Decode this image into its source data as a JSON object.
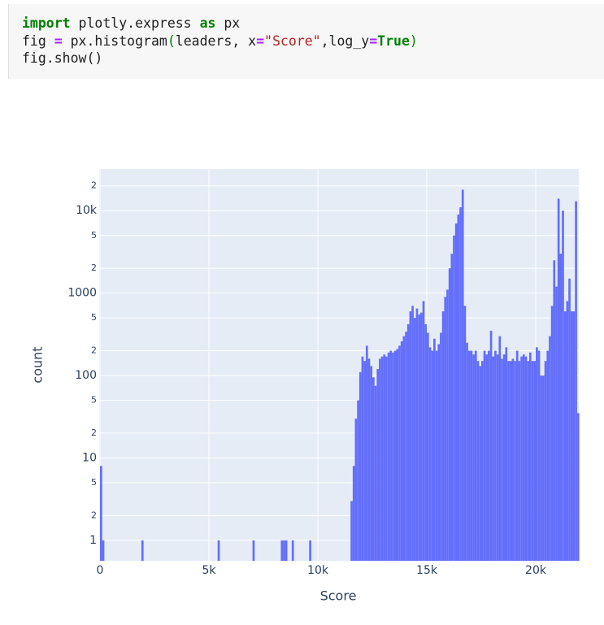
{
  "code": {
    "lines": [
      [
        {
          "text": "import",
          "style": "kw"
        },
        {
          "text": " plotly.express ",
          "style": "plain"
        },
        {
          "text": "as",
          "style": "kw"
        },
        {
          "text": " px",
          "style": "plain"
        }
      ],
      [
        {
          "text": "fig ",
          "style": "plain"
        },
        {
          "text": "=",
          "style": "op"
        },
        {
          "text": " px.histogram",
          "style": "plain"
        },
        {
          "text": "(",
          "style": "paren"
        },
        {
          "text": "leaders, x",
          "style": "plain"
        },
        {
          "text": "=",
          "style": "op"
        },
        {
          "text": "\"Score\"",
          "style": "str"
        },
        {
          "text": ",log_y",
          "style": "plain"
        },
        {
          "text": "=",
          "style": "op"
        },
        {
          "text": "True",
          "style": "kw"
        },
        {
          "text": ")",
          "style": "paren"
        }
      ],
      [
        {
          "text": "fig.show()",
          "style": "plain"
        }
      ]
    ]
  },
  "chart_data": {
    "type": "histogram",
    "x_label": "Score",
    "y_label": "count",
    "color": "#636efa",
    "log_y": true,
    "grid": true,
    "xlim": [
      0,
      22000
    ],
    "xticks": [
      0,
      {
        "value": 5000,
        "label": "5k"
      },
      {
        "value": 10000,
        "label": "10k"
      },
      {
        "value": 15000,
        "label": "15k"
      },
      {
        "value": 20000,
        "label": "20k"
      }
    ],
    "ylim": [
      0.565,
      32000
    ],
    "yticks": [
      1,
      2,
      5,
      10,
      {
        "value": 20,
        "label": "2"
      },
      {
        "value": 50,
        "label": "5"
      },
      100,
      {
        "value": 200,
        "label": "2"
      },
      {
        "value": 500,
        "label": "5"
      },
      1000,
      {
        "value": 2000,
        "label": "2"
      },
      {
        "value": 5000,
        "label": "5"
      },
      {
        "value": 10000,
        "label": "10k"
      },
      {
        "value": 20000,
        "label": "2"
      }
    ],
    "bins": [
      0,
      100,
      200,
      300,
      400,
      500,
      600,
      700,
      800,
      900,
      1000,
      1100,
      1200,
      1300,
      1400,
      1500,
      1600,
      1700,
      1800,
      1900,
      2000,
      2100,
      2200,
      2300,
      2400,
      2500,
      2600,
      2700,
      2800,
      2900,
      3000,
      3100,
      3200,
      3300,
      3400,
      3500,
      3600,
      3700,
      3800,
      3900,
      4000,
      4100,
      4200,
      4300,
      4400,
      4500,
      4600,
      4700,
      4800,
      4900,
      5000,
      5100,
      5200,
      5300,
      5400,
      5500,
      5600,
      5700,
      5800,
      5900,
      6000,
      6100,
      6200,
      6300,
      6400,
      6500,
      6600,
      6700,
      6800,
      6900,
      7000,
      7100,
      7200,
      7300,
      7400,
      7500,
      7600,
      7700,
      7800,
      7900,
      8000,
      8100,
      8200,
      8300,
      8400,
      8500,
      8600,
      8700,
      8800,
      8900,
      9000,
      9100,
      9200,
      9300,
      9400,
      9500,
      9600,
      9700,
      9800,
      9900,
      10000,
      10100,
      10200,
      10300,
      10400,
      10500,
      10600,
      10700,
      10800,
      10900,
      11000,
      11100,
      11200,
      11300,
      11400,
      11500,
      11600,
      11700,
      11800,
      11900,
      12000,
      12100,
      12200,
      12300,
      12400,
      12500,
      12600,
      12700,
      12800,
      12900,
      13000,
      13100,
      13200,
      13300,
      13400,
      13500,
      13600,
      13700,
      13800,
      13900,
      14000,
      14100,
      14200,
      14300,
      14400,
      14500,
      14600,
      14700,
      14800,
      14900,
      15000,
      15100,
      15200,
      15300,
      15400,
      15500,
      15600,
      15700,
      15800,
      15900,
      16000,
      16100,
      16200,
      16300,
      16400,
      16500,
      16600,
      16700,
      16800,
      16900,
      17000,
      17100,
      17200,
      17300,
      17400,
      17500,
      17600,
      17700,
      17800,
      17900,
      18000,
      18100,
      18200,
      18300,
      18400,
      18500,
      18600,
      18700,
      18800,
      18900,
      19000,
      19100,
      19200,
      19300,
      19400,
      19500,
      19600,
      19700,
      19800,
      19900,
      20000,
      20100,
      20200,
      20300,
      20400,
      20500,
      20600,
      20700,
      20800,
      20900,
      21000,
      21100,
      21200,
      21300,
      21400,
      21500,
      21600,
      21700,
      21800,
      21900,
      22000
    ],
    "counts": [
      8,
      1,
      0,
      0,
      0,
      0,
      0,
      0,
      0,
      0,
      0,
      0,
      0,
      0,
      0,
      0,
      0,
      0,
      0,
      1,
      0,
      0,
      0,
      0,
      0,
      0,
      0,
      0,
      0,
      0,
      0,
      0,
      0,
      0,
      0,
      0,
      0,
      0,
      0,
      0,
      0,
      0,
      0,
      0,
      0,
      0,
      0,
      0,
      0,
      0,
      0,
      0,
      0,
      0,
      1,
      0,
      0,
      0,
      0,
      0,
      0,
      0,
      0,
      0,
      0,
      0,
      0,
      0,
      0,
      0,
      1,
      0,
      0,
      0,
      0,
      0,
      0,
      0,
      0,
      0,
      0,
      0,
      0,
      1,
      1,
      1,
      0,
      0,
      1,
      0,
      0,
      0,
      0,
      0,
      0,
      0,
      1,
      0,
      0,
      0,
      0,
      0,
      0,
      0,
      0,
      0,
      0,
      0,
      0,
      0,
      0,
      0,
      0,
      0,
      0,
      3,
      8,
      30,
      50,
      110,
      170,
      150,
      230,
      160,
      130,
      95,
      75,
      120,
      160,
      170,
      180,
      170,
      190,
      200,
      190,
      200,
      210,
      230,
      260,
      300,
      340,
      420,
      600,
      700,
      500,
      650,
      550,
      580,
      800,
      420,
      330,
      220,
      200,
      280,
      200,
      240,
      330,
      600,
      900,
      1100,
      2000,
      3000,
      5000,
      7000,
      9000,
      11000,
      18000,
      700,
      250,
      200,
      200,
      180,
      200,
      150,
      130,
      150,
      200,
      180,
      200,
      350,
      170,
      200,
      180,
      300,
      160,
      180,
      220,
      150,
      150,
      160,
      150,
      200,
      150,
      170,
      180,
      170,
      150,
      190,
      150,
      150,
      220,
      200,
      100,
      100,
      150,
      200,
      300,
      700,
      2500,
      1200,
      14000,
      3000,
      10000,
      600,
      800,
      1500,
      600,
      600,
      13000,
      35
    ]
  }
}
